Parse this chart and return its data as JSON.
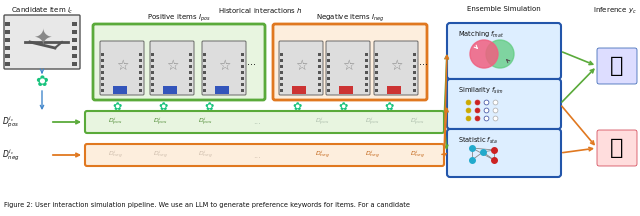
{
  "caption": "Figure 2: User interaction simulation pipeline. We use an LLM to generate preference keywords for items. For a candidate",
  "bg_color": "#ffffff",
  "colors": {
    "green": "#5aaa3a",
    "orange": "#e07820",
    "dark_blue": "#2255aa",
    "light_green_fill": "#e8f5e0",
    "light_orange_fill": "#fdeedd",
    "light_blue_fill": "#ddeeff",
    "arrow_blue": "#4488cc",
    "gray": "#888888",
    "text_dark": "#111111",
    "white": "#ffffff",
    "pink": "#f06080",
    "mint": "#60cc80",
    "red_dot": "#cc2222",
    "blue_dot": "#334499",
    "thumb_blue": "#4477cc",
    "thumb_red": "#cc3344",
    "openai_teal": "#19c37d",
    "pos_label_green": "#4a8830",
    "neg_label_orange": "#c06010"
  },
  "figsize": [
    6.4,
    2.16
  ],
  "dpi": 100
}
